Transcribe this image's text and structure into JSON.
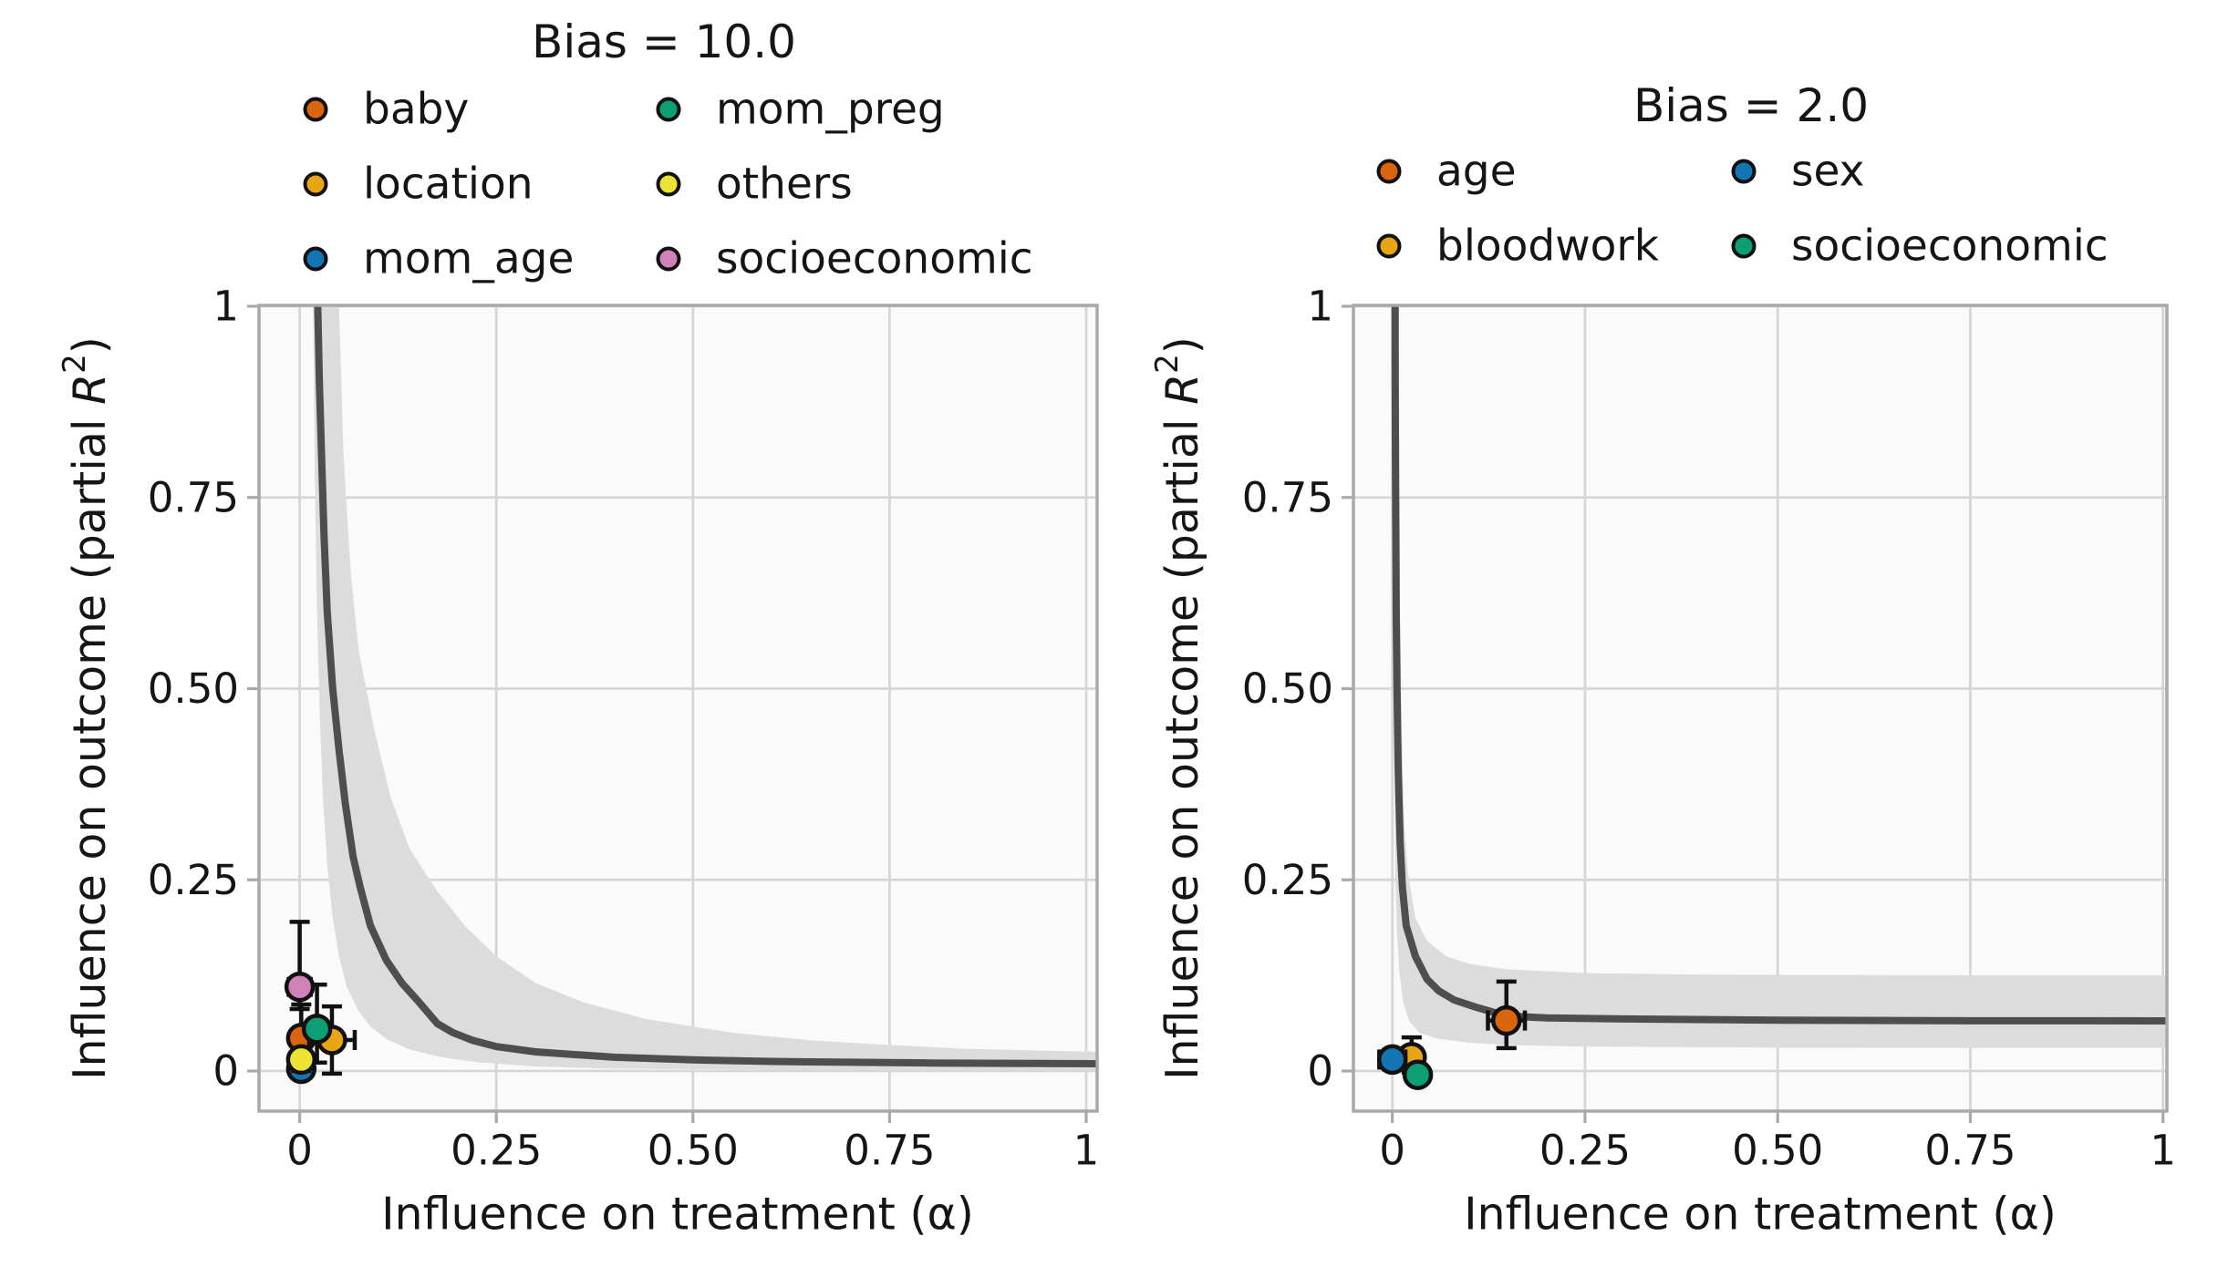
{
  "figure": {
    "background": "#ffffff",
    "plot_background": "#fafafa",
    "grid_color": "#d6d6d6",
    "spine_color": "#a9a9a9",
    "text_color": "#151515",
    "errorbar_color": "#111111",
    "marker_edge_color": "#111111"
  },
  "chart_data": [
    {
      "type": "scatter",
      "title": "Bias = 10.0",
      "xlabel": "Influence on treatment (α)",
      "ylabel_parts": {
        "prefix": "Influence on outcome (partial ",
        "r": "R",
        "sup": "2",
        "suffix": ")"
      },
      "xlim": [
        -0.052,
        1.014
      ],
      "ylim": [
        -0.0525,
        1.0
      ],
      "grid": true,
      "legend_position": "above-left",
      "xtick_values": [
        0,
        0.25,
        0.5,
        0.75,
        1
      ],
      "xtick_labels": [
        "0",
        "0.25",
        "0.50",
        "0.75",
        "1"
      ],
      "ytick_values": [
        0,
        0.25,
        0.5,
        0.75,
        1
      ],
      "ytick_labels": [
        "0",
        "0.25",
        "0.50",
        "0.75",
        "1"
      ],
      "bias_curve": {
        "color": "#4e4e4e",
        "points": [
          [
            0.023,
            1.0
          ],
          [
            0.025,
            0.9
          ],
          [
            0.028,
            0.8
          ],
          [
            0.031,
            0.7
          ],
          [
            0.035,
            0.6
          ],
          [
            0.042,
            0.5
          ],
          [
            0.05,
            0.42
          ],
          [
            0.058,
            0.35
          ],
          [
            0.068,
            0.28
          ],
          [
            0.077,
            0.24
          ],
          [
            0.09,
            0.19
          ],
          [
            0.11,
            0.145
          ],
          [
            0.13,
            0.115
          ],
          [
            0.15,
            0.092
          ],
          [
            0.175,
            0.062
          ],
          [
            0.195,
            0.05
          ],
          [
            0.22,
            0.04
          ],
          [
            0.25,
            0.032
          ],
          [
            0.3,
            0.025
          ],
          [
            0.4,
            0.018
          ],
          [
            0.5,
            0.0145
          ],
          [
            0.6,
            0.0125
          ],
          [
            0.7,
            0.0115
          ],
          [
            0.8,
            0.0105
          ],
          [
            0.9,
            0.01
          ],
          [
            1.014,
            0.0095
          ]
        ]
      },
      "band": {
        "color": "#dcdcdc",
        "outer": [
          [
            0.05,
            1.0
          ],
          [
            0.056,
            0.8
          ],
          [
            0.065,
            0.65
          ],
          [
            0.075,
            0.55
          ],
          [
            0.094,
            0.45
          ],
          [
            0.115,
            0.36
          ],
          [
            0.14,
            0.29
          ],
          [
            0.175,
            0.235
          ],
          [
            0.21,
            0.19
          ],
          [
            0.25,
            0.15
          ],
          [
            0.3,
            0.115
          ],
          [
            0.36,
            0.09
          ],
          [
            0.44,
            0.068
          ],
          [
            0.55,
            0.05
          ],
          [
            0.65,
            0.04
          ],
          [
            0.75,
            0.034
          ],
          [
            0.85,
            0.029
          ],
          [
            1.014,
            0.025
          ]
        ],
        "inner": [
          [
            0.017,
            1.0
          ],
          [
            0.019,
            0.8
          ],
          [
            0.022,
            0.6
          ],
          [
            0.026,
            0.45
          ],
          [
            0.03,
            0.35
          ],
          [
            0.035,
            0.27
          ],
          [
            0.042,
            0.2
          ],
          [
            0.05,
            0.15
          ],
          [
            0.06,
            0.11
          ],
          [
            0.075,
            0.078
          ],
          [
            0.09,
            0.058
          ],
          [
            0.11,
            0.042
          ],
          [
            0.14,
            0.028
          ],
          [
            0.18,
            0.018
          ],
          [
            0.23,
            0.011
          ],
          [
            0.3,
            0.006
          ],
          [
            0.4,
            0.003
          ],
          [
            0.55,
            0.002
          ],
          [
            0.75,
            0.001
          ],
          [
            1.014,
            0.001
          ]
        ]
      },
      "series": [
        {
          "name": "baby",
          "color": "#d9650d",
          "x": 0.002,
          "y": 0.043,
          "xerr": 0.012,
          "yerr_up": 0.044,
          "yerr_down": 0.04
        },
        {
          "name": "location",
          "color": "#e9a513",
          "x": 0.041,
          "y": 0.0405,
          "xerr": 0.029,
          "yerr_up": 0.044,
          "yerr_down": 0.044
        },
        {
          "name": "mom_age",
          "color": "#1375b4",
          "x": 0.002,
          "y": 0.003,
          "xerr": 0.012,
          "yerr_up": 0.012,
          "yerr_down": 0.012
        },
        {
          "name": "mom_preg",
          "color": "#0d9e74",
          "x": 0.022,
          "y": 0.055,
          "xerr": 0.01,
          "yerr_up": 0.058,
          "yerr_down": 0.044
        },
        {
          "name": "others",
          "color": "#ede335",
          "x": 0.002,
          "y": 0.015,
          "xerr": 0.01,
          "yerr_up": 0.015,
          "yerr_down": 0.015
        },
        {
          "name": "socioeconomic",
          "color": "#cf82b8",
          "x": 0.0,
          "y": 0.11,
          "xerr": 0.014,
          "yerr_up": 0.085,
          "yerr_down": 0.029
        }
      ],
      "legend": {
        "columns": [
          [
            "baby",
            "location",
            "mom_age"
          ],
          [
            "mom_preg",
            "others",
            "socioeconomic"
          ]
        ]
      }
    },
    {
      "type": "scatter",
      "title": "Bias = 2.0",
      "xlabel": "Influence on treatment (α)",
      "ylabel_parts": {
        "prefix": "Influence on outcome (partial ",
        "r": "R",
        "sup": "2",
        "suffix": ")"
      },
      "xlim": [
        -0.05,
        1.006
      ],
      "ylim": [
        -0.0525,
        1.0
      ],
      "grid": true,
      "legend_position": "above-left",
      "xtick_values": [
        0,
        0.25,
        0.5,
        0.75,
        1
      ],
      "xtick_labels": [
        "0",
        "0.25",
        "0.50",
        "0.75",
        "1"
      ],
      "ytick_values": [
        0,
        0.25,
        0.5,
        0.75,
        1
      ],
      "ytick_labels": [
        "0",
        "0.25",
        "0.50",
        "0.75",
        "1"
      ],
      "bias_curve": {
        "color": "#4e4e4e",
        "points": [
          [
            0.0035,
            1.0
          ],
          [
            0.0037,
            0.9
          ],
          [
            0.004,
            0.8
          ],
          [
            0.0045,
            0.7
          ],
          [
            0.005,
            0.6
          ],
          [
            0.006,
            0.5
          ],
          [
            0.0075,
            0.4
          ],
          [
            0.01,
            0.3
          ],
          [
            0.013,
            0.24
          ],
          [
            0.018,
            0.19
          ],
          [
            0.03,
            0.15
          ],
          [
            0.045,
            0.12
          ],
          [
            0.06,
            0.105
          ],
          [
            0.08,
            0.093
          ],
          [
            0.11,
            0.083
          ],
          [
            0.148,
            0.072
          ],
          [
            0.2,
            0.0695
          ],
          [
            0.3,
            0.068
          ],
          [
            0.5,
            0.0665
          ],
          [
            0.7,
            0.0658
          ],
          [
            1.006,
            0.0655
          ]
        ]
      },
      "band": {
        "color": "#dcdcdc",
        "outer": [
          [
            0.0085,
            1.0
          ],
          [
            0.009,
            0.8
          ],
          [
            0.01,
            0.6
          ],
          [
            0.012,
            0.45
          ],
          [
            0.015,
            0.33
          ],
          [
            0.02,
            0.26
          ],
          [
            0.03,
            0.2
          ],
          [
            0.045,
            0.17
          ],
          [
            0.07,
            0.15
          ],
          [
            0.1,
            0.14
          ],
          [
            0.148,
            0.133
          ],
          [
            0.25,
            0.128
          ],
          [
            0.4,
            0.126
          ],
          [
            0.6,
            0.1255
          ],
          [
            0.8,
            0.125
          ],
          [
            1.006,
            0.125
          ]
        ],
        "inner": [
          [
            0.002,
            1.0
          ],
          [
            0.0022,
            0.7
          ],
          [
            0.0025,
            0.5
          ],
          [
            0.003,
            0.35
          ],
          [
            0.004,
            0.25
          ],
          [
            0.006,
            0.18
          ],
          [
            0.009,
            0.13
          ],
          [
            0.014,
            0.09
          ],
          [
            0.022,
            0.065
          ],
          [
            0.035,
            0.05
          ],
          [
            0.06,
            0.042
          ],
          [
            0.1,
            0.037
          ],
          [
            0.148,
            0.034
          ],
          [
            0.25,
            0.032
          ],
          [
            0.5,
            0.0305
          ],
          [
            0.75,
            0.03
          ],
          [
            1.006,
            0.03
          ]
        ]
      },
      "series": [
        {
          "name": "age",
          "color": "#d9650d",
          "x": 0.148,
          "y": 0.066,
          "xerr": 0.024,
          "yerr_up": 0.051,
          "yerr_down": 0.036
        },
        {
          "name": "bloodwork",
          "color": "#e9a513",
          "x": 0.025,
          "y": 0.018,
          "xerr": 0.013,
          "yerr_up": 0.026,
          "yerr_down": 0.02
        },
        {
          "name": "sex",
          "color": "#1375b4",
          "x": 0.0,
          "y": 0.015,
          "xerr": 0.017,
          "yerr_up": 0.013,
          "yerr_down": 0.013
        },
        {
          "name": "socioeconomic",
          "color": "#0d9e74",
          "x": 0.033,
          "y": -0.005,
          "xerr": 0.012,
          "yerr_up": 0.012,
          "yerr_down": 0.012
        }
      ],
      "legend": {
        "columns": [
          [
            "age",
            "bloodwork"
          ],
          [
            "sex",
            "socioeconomic"
          ]
        ]
      }
    }
  ]
}
